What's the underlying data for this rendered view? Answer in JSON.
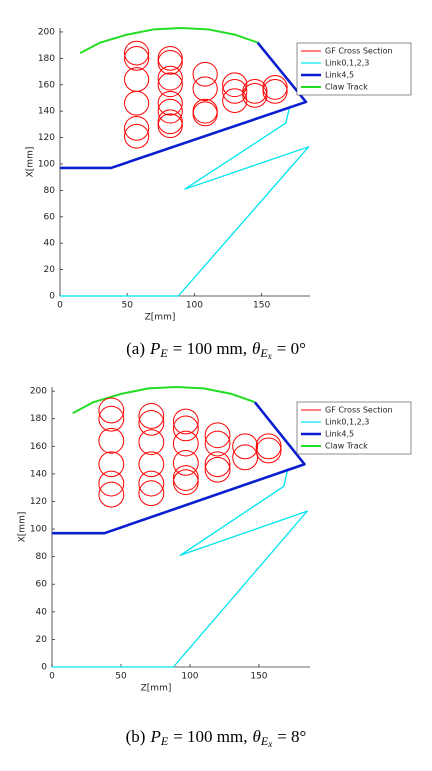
{
  "chart_data": [
    {
      "type": "line",
      "xlabel": "Z[mm]",
      "ylabel": "X[mm]",
      "legend": "upper right",
      "xlim": [
        0,
        186
      ],
      "ylim": [
        0,
        203
      ],
      "xticks": [
        0,
        50,
        100,
        150
      ],
      "yticks": [
        0,
        20,
        40,
        60,
        80,
        100,
        120,
        140,
        160,
        180,
        200
      ],
      "caption": {
        "label": "(a)",
        "symbol": "P",
        "symbol_sub": "E",
        "equals": "= 100 mm,",
        "angle": "θ",
        "angle_sub": "E",
        "angle_subsub": "x",
        "angle_equals": "= 0°"
      },
      "series": [
        {
          "name": "GF Cross Section",
          "color": "#ff0000",
          "linewidth": 1,
          "x": [
            57,
            57,
            57,
            57,
            57,
            57,
            82,
            82,
            82,
            82,
            82,
            82,
            82,
            82,
            108,
            108,
            108,
            108,
            130,
            130,
            130,
            145,
            145,
            160,
            160
          ],
          "y": [
            184,
            180,
            164,
            146,
            127,
            121,
            180,
            177,
            165,
            160,
            146,
            140,
            132,
            129,
            168,
            157,
            140,
            138,
            160,
            155,
            148,
            155,
            152,
            158,
            155
          ],
          "r": [
            9,
            9,
            9,
            9,
            9,
            9,
            9,
            9,
            9,
            9,
            9,
            9,
            9,
            9,
            9,
            9,
            9,
            9,
            9,
            9,
            9,
            9,
            9,
            9,
            9
          ]
        },
        {
          "name": "Link0,1,2,3",
          "color": "#00e5ee",
          "linewidth": 1.3,
          "x": [
            0,
            88,
            185,
            93,
            168,
            171
          ],
          "y": [
            0,
            0,
            113,
            81,
            131,
            144
          ]
        },
        {
          "name": "Link4,5",
          "color": "#0a1fd0",
          "linewidth": 2.6,
          "x": [
            0,
            38,
            183,
            147
          ],
          "y": [
            97,
            97,
            147,
            192
          ]
        },
        {
          "name": "Claw Track",
          "color": "#22dd22",
          "linewidth": 2,
          "x": [
            15,
            30,
            50,
            70,
            90,
            110,
            130,
            147
          ],
          "y": [
            184,
            192,
            198,
            202,
            203,
            202,
            198,
            192
          ]
        }
      ]
    },
    {
      "type": "line",
      "xlabel": "Z[mm]",
      "ylabel": "X[mm]",
      "legend": "upper right",
      "xlim": [
        0,
        187
      ],
      "ylim": [
        0,
        203
      ],
      "xticks": [
        0,
        50,
        100,
        150
      ],
      "yticks": [
        0,
        20,
        40,
        60,
        80,
        100,
        120,
        140,
        160,
        180,
        200
      ],
      "caption": {
        "label": "(b)",
        "symbol": "P",
        "symbol_sub": "E",
        "equals": "= 100 mm,",
        "angle": "θ",
        "angle_sub": "E",
        "angle_subsub": "x",
        "angle_equals": "= 8°"
      },
      "series": [
        {
          "name": "GF Cross Section",
          "color": "#ff0000",
          "linewidth": 1,
          "x": [
            43,
            43,
            43,
            43,
            43,
            43,
            72,
            72,
            72,
            72,
            72,
            72,
            97,
            97,
            97,
            97,
            97,
            97,
            120,
            120,
            120,
            120,
            140,
            140,
            157,
            157
          ],
          "y": [
            186,
            180,
            164,
            147,
            133,
            125,
            182,
            177,
            163,
            147,
            133,
            126,
            178,
            173,
            162,
            148,
            137,
            134,
            168,
            162,
            147,
            143,
            160,
            152,
            160,
            157
          ],
          "r": [
            9,
            9,
            9,
            9,
            9,
            9,
            9,
            9,
            9,
            9,
            9,
            9,
            9,
            9,
            9,
            9,
            9,
            9,
            9,
            9,
            9,
            9,
            9,
            9,
            9,
            9
          ]
        },
        {
          "name": "Link0,1,2,3",
          "color": "#00e5ee",
          "linewidth": 1.3,
          "x": [
            0,
            88,
            185,
            93,
            168,
            171
          ],
          "y": [
            0,
            0,
            113,
            81,
            131,
            144
          ]
        },
        {
          "name": "Link4,5",
          "color": "#0a1fd0",
          "linewidth": 2.6,
          "x": [
            0,
            38,
            183,
            147
          ],
          "y": [
            97,
            97,
            147,
            192
          ]
        },
        {
          "name": "Claw Track",
          "color": "#22dd22",
          "linewidth": 2,
          "x": [
            15,
            30,
            50,
            70,
            90,
            110,
            130,
            147
          ],
          "y": [
            184,
            192,
            198,
            202,
            203,
            202,
            198,
            192
          ]
        }
      ]
    }
  ]
}
